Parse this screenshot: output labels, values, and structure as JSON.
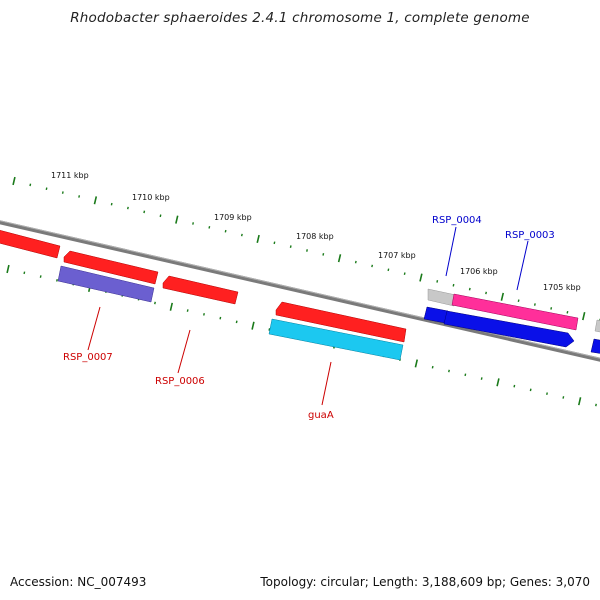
{
  "title": "Rhodobacter sphaeroides 2.4.1 chromosome 1, complete genome",
  "accession": "Accession: NC_007493",
  "summary": "Topology: circular; Length: 3,188,609 bp; Genes: 3,070",
  "colors": {
    "backbone": "#7a7a7a",
    "tick": "#1a7a1a",
    "label_red": "#cc0000",
    "label_blue": "#0000cc"
  },
  "scale_labels": [
    "1711 kbp",
    "1710 kbp",
    "1709 kbp",
    "1708 kbp",
    "1707 kbp",
    "1706 kbp",
    "1705 kbp"
  ],
  "gene_labels": [
    {
      "text": "RSP_0007",
      "color": "red"
    },
    {
      "text": "RSP_0006",
      "color": "red"
    },
    {
      "text": "guaA",
      "color": "red"
    },
    {
      "text": "RSP_0004",
      "color": "blue"
    },
    {
      "text": "RSP_0003",
      "color": "blue"
    }
  ]
}
